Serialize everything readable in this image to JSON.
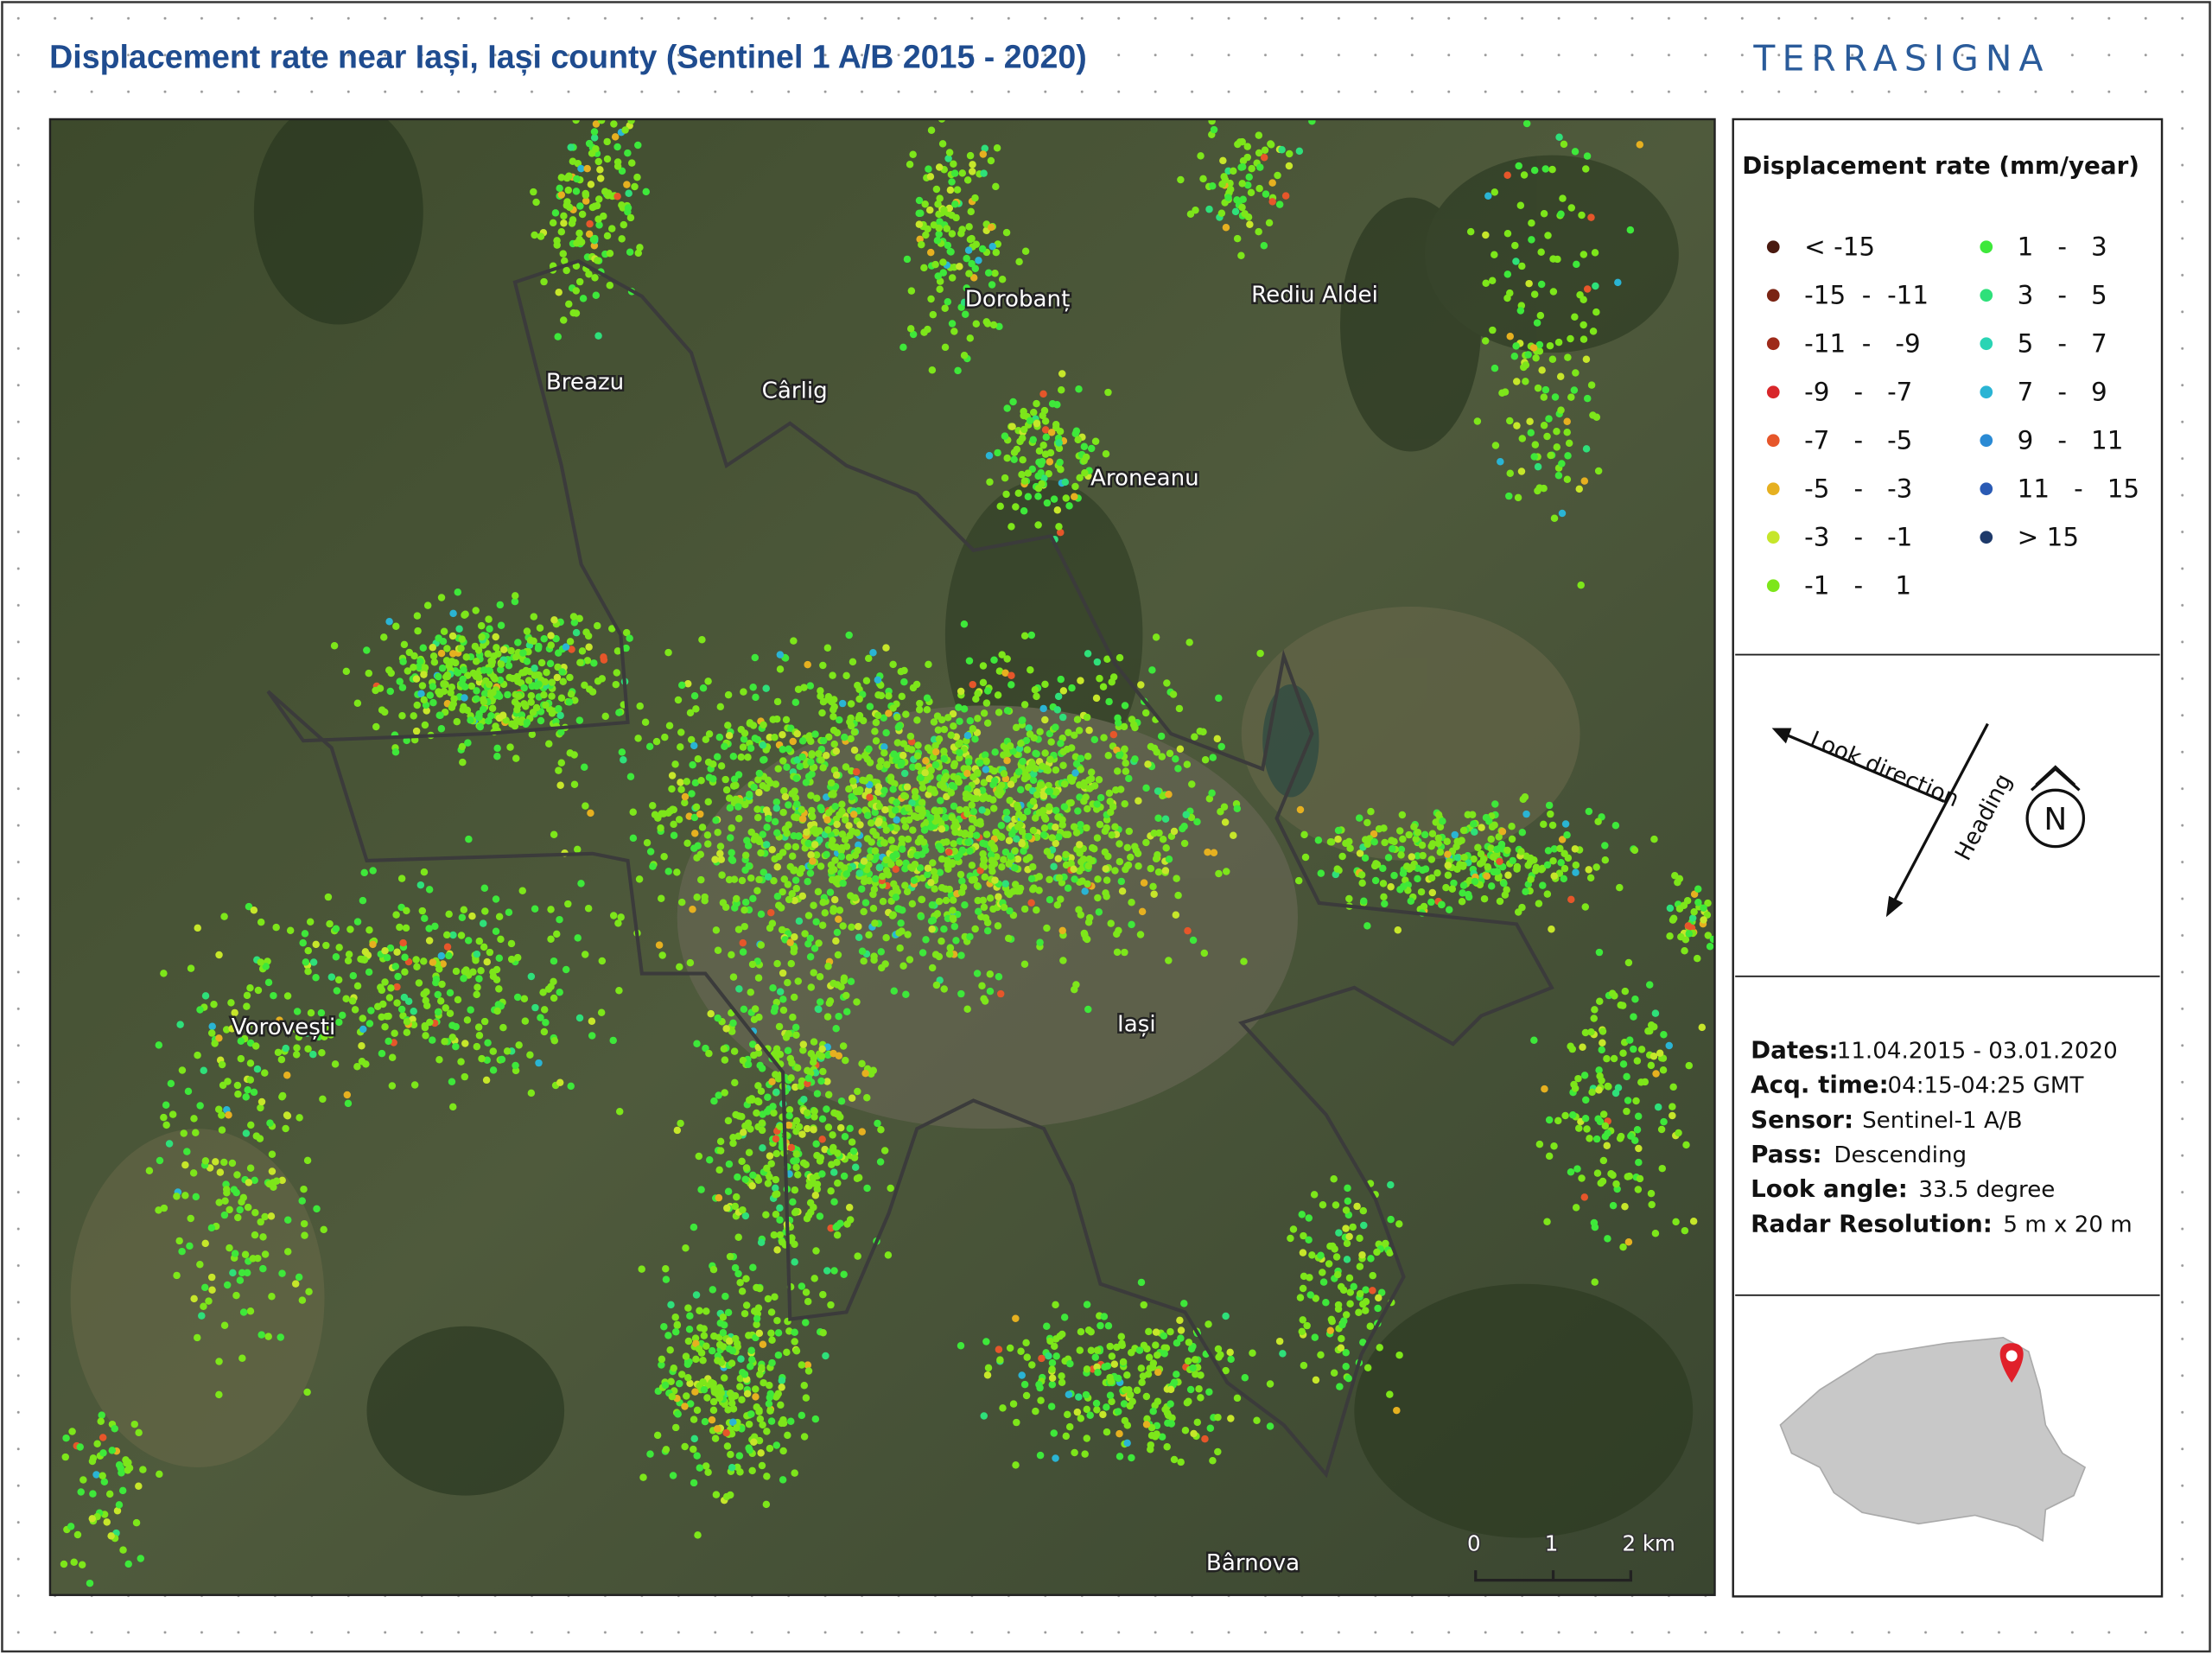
{
  "header": {
    "title": "Displacement rate near Iași, Iași county (Sentinel 1 A/B 2015 - 2020)",
    "logo": "TERRASIGNA"
  },
  "map": {
    "places": [
      "Breazu",
      "Cârlig",
      "Dorobanț",
      "Rediu Aldei",
      "Aroneanu",
      "Vorovești",
      "Iași",
      "Bârnova"
    ],
    "scale_bar": [
      "0",
      "1",
      "2 km"
    ]
  },
  "legend": {
    "title": "Displacement rate (mm/year)",
    "items": [
      {
        "label": "< -15",
        "color": "#4a1a10"
      },
      {
        "label": "-15  -  -11",
        "color": "#7a2414"
      },
      {
        "label": "-11  -   -9",
        "color": "#9e2a1a"
      },
      {
        "label": "-9   -   -7",
        "color": "#d8262a"
      },
      {
        "label": "-7   -   -5",
        "color": "#e6562a"
      },
      {
        "label": "-5   -   -3",
        "color": "#e6b020"
      },
      {
        "label": "-3   -   -1",
        "color": "#c6e62a"
      },
      {
        "label": "-1   -    1",
        "color": "#7de61a"
      },
      {
        "label": "1   -   3",
        "color": "#3ee83a"
      },
      {
        "label": "3   -   5",
        "color": "#2ee07a"
      },
      {
        "label": "5   -   7",
        "color": "#2ad4b4"
      },
      {
        "label": "7   -   9",
        "color": "#2ab4d4"
      },
      {
        "label": "9   -   11",
        "color": "#2a8ad4"
      },
      {
        "label": "11   -   15",
        "color": "#2a5ab4"
      },
      {
        "label": "> 15",
        "color": "#1e3a6a"
      }
    ]
  },
  "orientation": {
    "look": "Look direction",
    "heading": "Heading",
    "north": "N"
  },
  "info": [
    {
      "key": "Dates:",
      "value": "11.04.2015 - 03.01.2020"
    },
    {
      "key": "Acq. time:",
      "value": "04:15-04:25 GMT"
    },
    {
      "key": "Sensor:",
      "value": "Sentinel-1 A/B"
    },
    {
      "key": "Pass:",
      "value": "Descending"
    },
    {
      "key": "Look angle:",
      "value": "33.5 degree"
    },
    {
      "key": "Radar Resolution:",
      "value": "5 m x 20 m"
    }
  ]
}
